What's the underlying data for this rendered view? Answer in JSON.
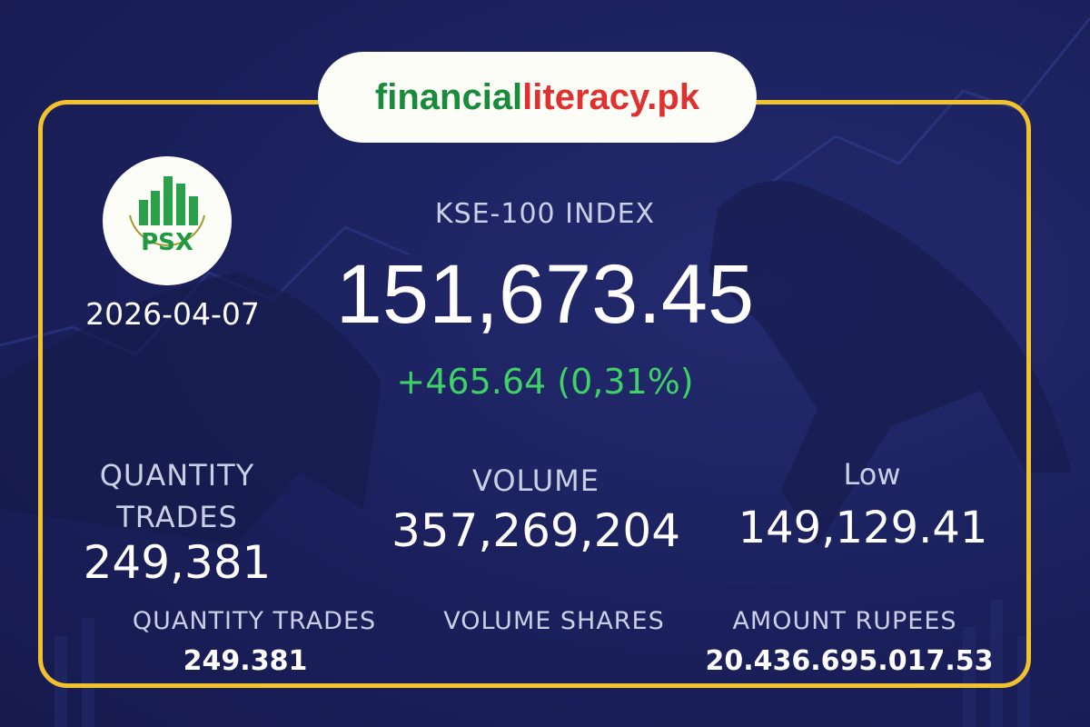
{
  "brand": {
    "part1": "financial",
    "part2": "literacy.pk",
    "green": "#1a8a3c",
    "red": "#e03030"
  },
  "logo": {
    "text": "PSX"
  },
  "date": "2026-04-07",
  "index": {
    "label": "KSE-100 INDEX",
    "value": "151,673.45",
    "change": "+465.64 (0,31%)",
    "change_color": "#3fd067"
  },
  "stats": [
    {
      "label_line1": "QUANTITY",
      "label_line2": "TRADES",
      "value": "249,381"
    },
    {
      "label": "VOLUME",
      "value": "357,269,204"
    },
    {
      "label": "Low",
      "value": "149,129.41"
    }
  ],
  "footer": [
    {
      "label": "QUANTITY TRADES",
      "value": "249.381"
    },
    {
      "label": "VOLUME SHARES",
      "value": ""
    },
    {
      "label": "AMOUNT RUPEES",
      "value": "20.436.695.017.53"
    }
  ],
  "colors": {
    "background": "#1b205c",
    "frame": "#f2c12e"
  }
}
